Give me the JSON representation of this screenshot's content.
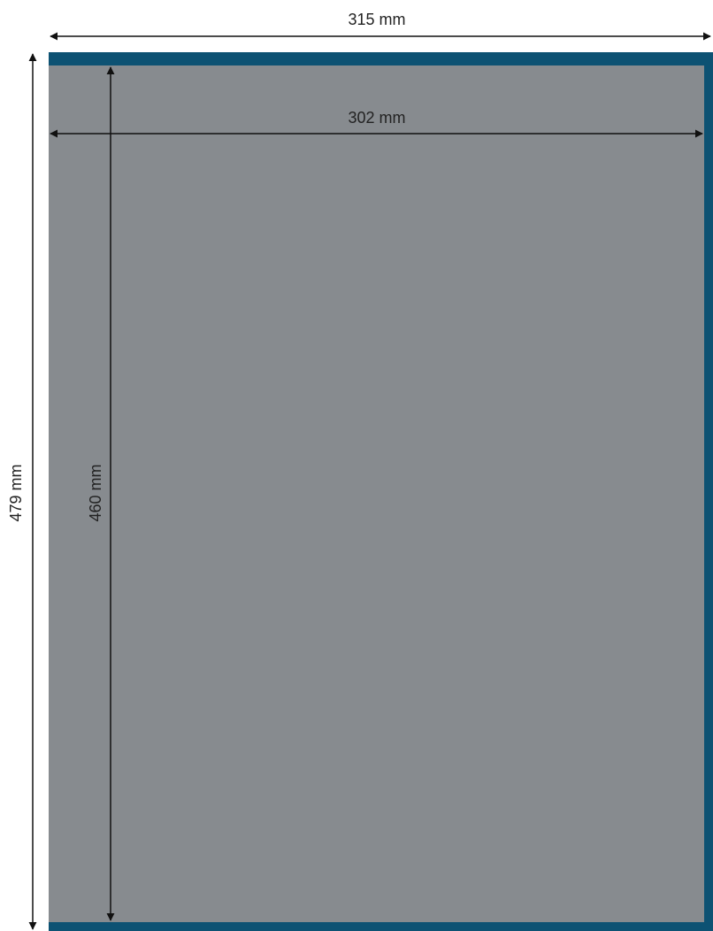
{
  "colors": {
    "outer_frame": "#0d5273",
    "inner_panel": "#878b8f",
    "dimension_line": "#111111",
    "label_text": "#222222"
  },
  "dimensions": {
    "outer_width": {
      "value": 315,
      "unit": "mm",
      "label": "315 mm"
    },
    "inner_width": {
      "value": 302,
      "unit": "mm",
      "label": "302 mm"
    },
    "outer_height": {
      "value": 479,
      "unit": "mm",
      "label": "479 mm"
    },
    "inner_height": {
      "value": 460,
      "unit": "mm",
      "label": "460 mm"
    }
  }
}
